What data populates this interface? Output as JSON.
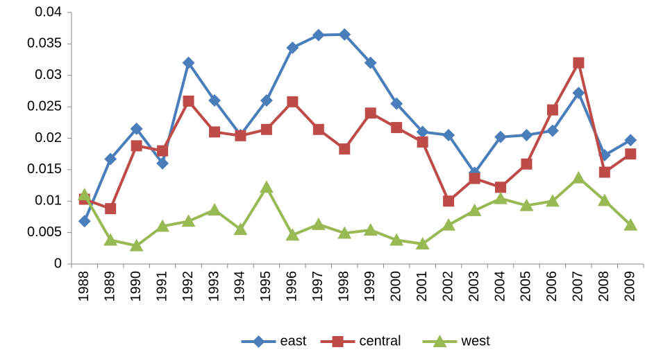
{
  "chart_data": {
    "type": "line",
    "categories": [
      "1988",
      "1989",
      "1990",
      "1991",
      "1992",
      "1993",
      "1994",
      "1995",
      "1996",
      "1997",
      "1998",
      "1999",
      "2000",
      "2001",
      "2002",
      "2003",
      "2004",
      "2005",
      "2006",
      "2007",
      "2008",
      "2009"
    ],
    "series": [
      {
        "name": "east",
        "color": "#4a7ebb",
        "marker": "diamond",
        "values": [
          0.0068,
          0.0167,
          0.0215,
          0.016,
          0.032,
          0.026,
          0.0205,
          0.026,
          0.0344,
          0.0364,
          0.0365,
          0.032,
          0.0255,
          0.021,
          0.0205,
          0.0145,
          0.0202,
          0.0205,
          0.0212,
          0.0272,
          0.0173,
          0.0197
        ]
      },
      {
        "name": "central",
        "color": "#be4b48",
        "marker": "square",
        "values": [
          0.0103,
          0.0088,
          0.0188,
          0.018,
          0.0259,
          0.021,
          0.0204,
          0.0214,
          0.0258,
          0.0214,
          0.0183,
          0.024,
          0.0217,
          0.0194,
          0.01,
          0.0136,
          0.0122,
          0.0159,
          0.0245,
          0.032,
          0.0146,
          0.0175
        ]
      },
      {
        "name": "west",
        "color": "#98b954",
        "marker": "triangle",
        "values": [
          0.011,
          0.0038,
          0.0029,
          0.006,
          0.0068,
          0.0086,
          0.0055,
          0.0122,
          0.0046,
          0.0063,
          0.0049,
          0.0054,
          0.0038,
          0.0032,
          0.0062,
          0.0085,
          0.0104,
          0.0093,
          0.01,
          0.0137,
          0.0101,
          0.0062
        ]
      }
    ],
    "ylim": [
      0,
      0.04
    ],
    "yticks": [
      0,
      0.005,
      0.01,
      0.015,
      0.02,
      0.025,
      0.03,
      0.035,
      0.04
    ],
    "grid": false,
    "legend": "bottom"
  }
}
